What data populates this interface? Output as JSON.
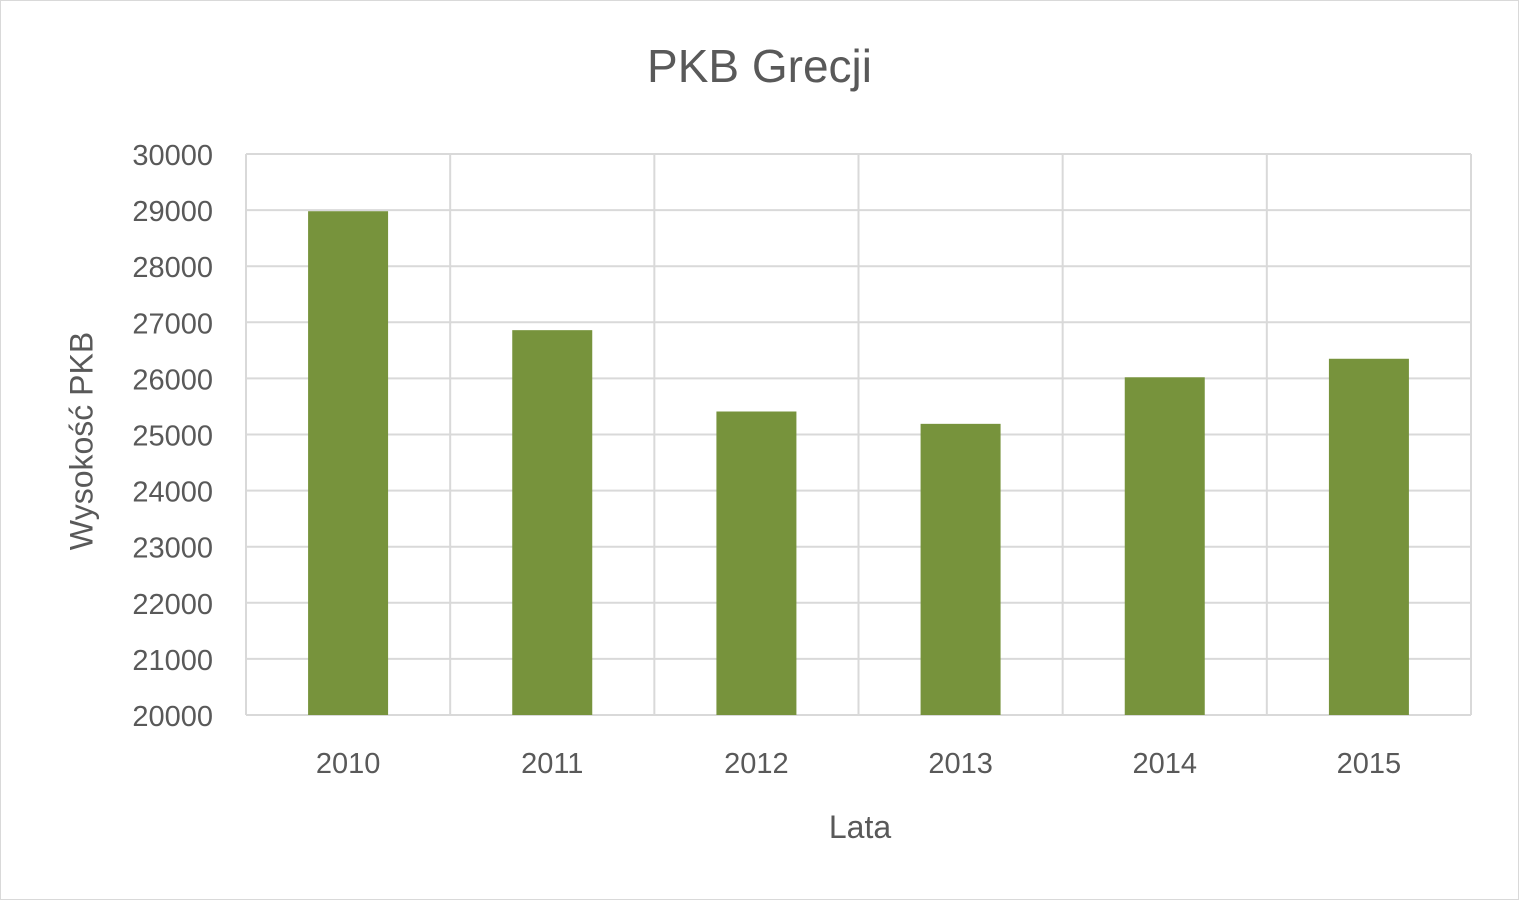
{
  "chart_data": {
    "type": "bar",
    "title": "PKB Grecji",
    "xlabel": "Lata",
    "ylabel": "Wysokość PKB",
    "categories": [
      "2010",
      "2011",
      "2012",
      "2013",
      "2014",
      "2015"
    ],
    "values": [
      28980,
      26860,
      25410,
      25190,
      26020,
      26350
    ],
    "ylim": [
      20000,
      30000
    ],
    "yticks": [
      "20000",
      "21000",
      "22000",
      "23000",
      "24000",
      "25000",
      "26000",
      "27000",
      "28000",
      "29000",
      "30000"
    ],
    "grid": true,
    "legend": "none",
    "colors": {
      "bar": "#77933c",
      "grid": "#d9d9d9",
      "text": "#595959"
    }
  }
}
